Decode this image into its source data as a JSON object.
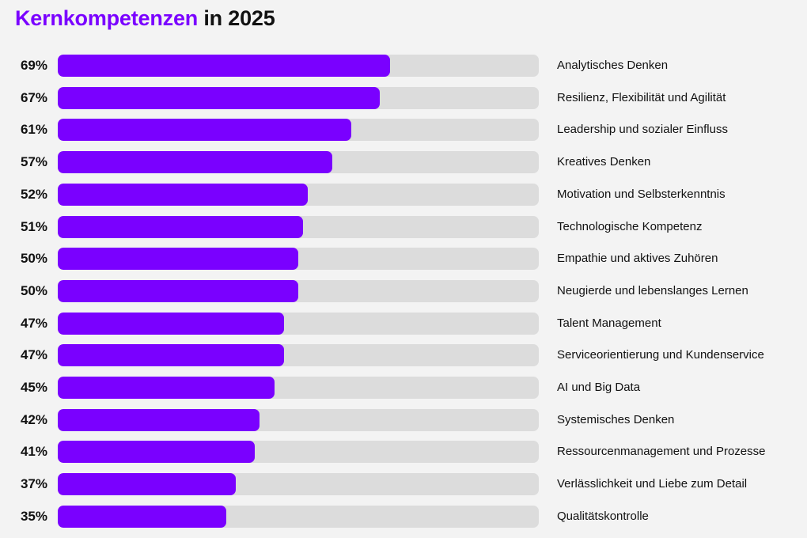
{
  "chart_data": {
    "type": "bar",
    "orientation": "horizontal",
    "title": "Kernkompetenzen in 2025",
    "title_parts": {
      "accent": "Kernkompetenzen",
      "rest": " in 2025"
    },
    "value_suffix": "%",
    "xlim": [
      0,
      100
    ],
    "grid": false,
    "categories": [
      "Analytisches Denken",
      "Resilienz, Flexibilität und Agilität",
      "Leadership und sozialer Einfluss",
      "Kreatives Denken",
      "Motivation und Selbsterkenntnis",
      "Technologische Kompetenz",
      "Empathie und aktives Zuhören",
      "Neugierde und lebenslanges Lernen",
      "Talent Management",
      "Serviceorientierung und Kundenservice",
      "AI und Big Data",
      "Systemisches Denken",
      "Ressourcenmanagement und Prozesse",
      "Verlässlichkeit und Liebe zum Detail",
      "Qualitätskontrolle"
    ],
    "values": [
      69,
      67,
      61,
      57,
      52,
      51,
      50,
      50,
      47,
      47,
      45,
      42,
      41,
      37,
      35
    ],
    "colors": {
      "accent": "#7a00ff",
      "track": "#dcdcdc",
      "background": "#f3f3f3",
      "text": "#111111"
    }
  }
}
